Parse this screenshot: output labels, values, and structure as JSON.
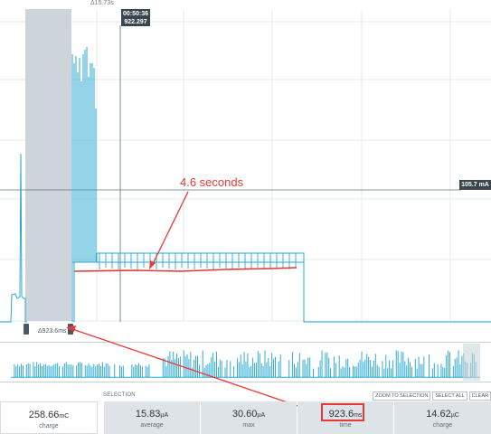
{
  "header": {
    "top_delta": "Δ15.73s",
    "cursor_time": "00:50:36",
    "cursor_value": "922.297",
    "y_readout": "105.7 mA"
  },
  "annotation": {
    "text": "4.6 seconds"
  },
  "selection": {
    "delta_label": "Δ923.6ms",
    "heading": "SELECTION"
  },
  "buttons": {
    "zoom": "ZOOM TO SELECTION",
    "select_all": "SELECT ALL",
    "clear": "CLEAR"
  },
  "stats": {
    "charge_left": {
      "value": "258.66",
      "unit": "mC",
      "label": "charge"
    },
    "average": {
      "value": "15.83",
      "unit": "µA",
      "label": "average"
    },
    "max": {
      "value": "30.60",
      "unit": "µA",
      "label": "max"
    },
    "time": {
      "value": "923.6",
      "unit": "ms",
      "label": "time"
    },
    "charge_right": {
      "value": "14.62",
      "unit": "µC",
      "label": "charge"
    }
  },
  "colors": {
    "trace": "#29a8d1",
    "annotation": "#e53935",
    "selection_fill": "#cbd3d8",
    "label_bg": "#38464d"
  }
}
